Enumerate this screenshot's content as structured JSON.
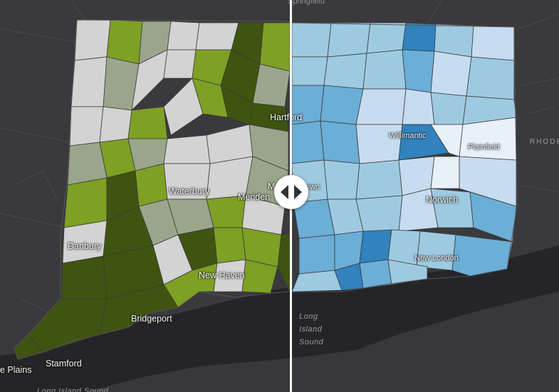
{
  "map": {
    "left_layer_colors": [
      "#d3d3d3",
      "#9aa68c",
      "#7ea024",
      "#4d6614",
      "#3e5410"
    ],
    "right_layer_colors": [
      "#e8f1fa",
      "#c7dcf0",
      "#9ecae1",
      "#6baed6",
      "#3182bd"
    ],
    "land_color": "#3a3a3d",
    "water_color": "#252528",
    "divider_color": "#ffffff"
  },
  "place_labels": {
    "springfield": "Springfield",
    "hartford": "Hartford",
    "willimantic": "Willimantic",
    "plainfield": "Plainfield",
    "rhode": "RHODE",
    "waterbury": "Waterbury",
    "meriden": "Meriden",
    "middletown_fragment": "M",
    "middletown_right_fragment": "own",
    "norwich": "Norwich",
    "danbury": "Danbury",
    "new_haven": "New Haven",
    "new_london": "New London",
    "bridgeport": "Bridgeport",
    "stamford": "Stamford",
    "white_plains": "e Plains",
    "long_island_sound_1": "Long",
    "long_island_sound_2": "Island",
    "long_island_sound_3": "Sound",
    "long_island_sound_bottom": "Long Island Sound"
  },
  "swipe": {
    "handle_icon": "swipe-arrows-icon"
  }
}
